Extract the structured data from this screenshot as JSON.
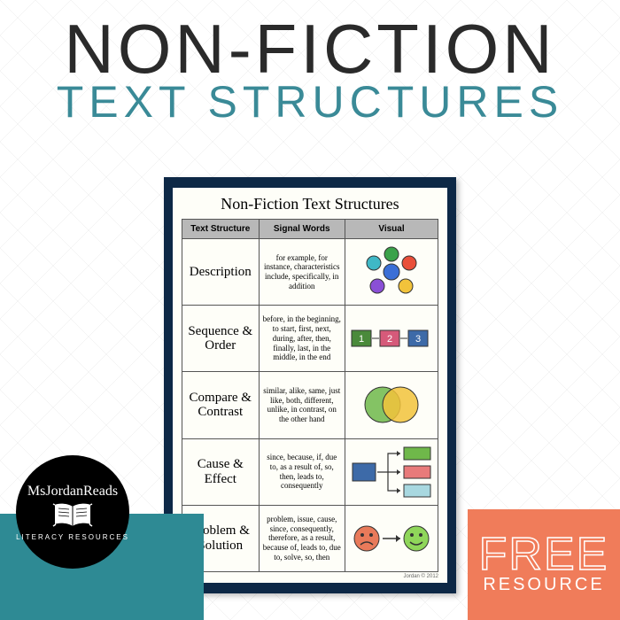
{
  "title": {
    "main": "NON-FICTION",
    "sub": "TEXT STRUCTURES",
    "main_color": "#2a2a2a",
    "sub_color": "#3a8a97"
  },
  "logo": {
    "author": "MsJordanReads",
    "tag": "LITERACY RESOURCES"
  },
  "free_badge": {
    "line1": "FREE",
    "line2": "RESOURCE",
    "bg": "#f07c5a"
  },
  "chart": {
    "title": "Non-Fiction Text Structures",
    "border_color": "#0d2846",
    "headers": [
      "Text Structure",
      "Signal Words",
      "Visual"
    ],
    "header_bg": "#b8b8b8",
    "copyright": "Jordan © 2012",
    "rows": [
      {
        "name": "Description",
        "signals": "for example, for instance, characteristics include, specifically, in addition",
        "visual": "cluster",
        "colors": [
          "#3b6fd6",
          "#3ba24a",
          "#e94f3a",
          "#f2c33b",
          "#8a4fd6",
          "#3fb8c6"
        ]
      },
      {
        "name": "Sequence & Order",
        "signals": "before, in the beginning, to start, first, next, during, after, then, finally, last, in the middle, in the end",
        "visual": "sequence",
        "colors": [
          "#4a8a3b",
          "#d65a7a",
          "#3d6aa8"
        ]
      },
      {
        "name": "Compare & Contrast",
        "signals": "similar, alike, same, just like, both, different, unlike, in contrast, on the other hand",
        "visual": "venn",
        "colors": [
          "#6fb84a",
          "#f2c33b"
        ]
      },
      {
        "name": "Cause & Effect",
        "signals": "since, because, if, due to, as a result of, so, then, leads to, consequently",
        "visual": "cause",
        "colors": [
          "#3d6aa8",
          "#6fb84a",
          "#e87a7a",
          "#a8d8e0"
        ]
      },
      {
        "name": "Problem & Solution",
        "signals": "problem, issue, cause, since, consequently, therefore, as a result, because of, leads to, due to, solve, so, then",
        "visual": "problem",
        "colors": [
          "#e87a5a",
          "#8fd65a"
        ]
      }
    ]
  }
}
